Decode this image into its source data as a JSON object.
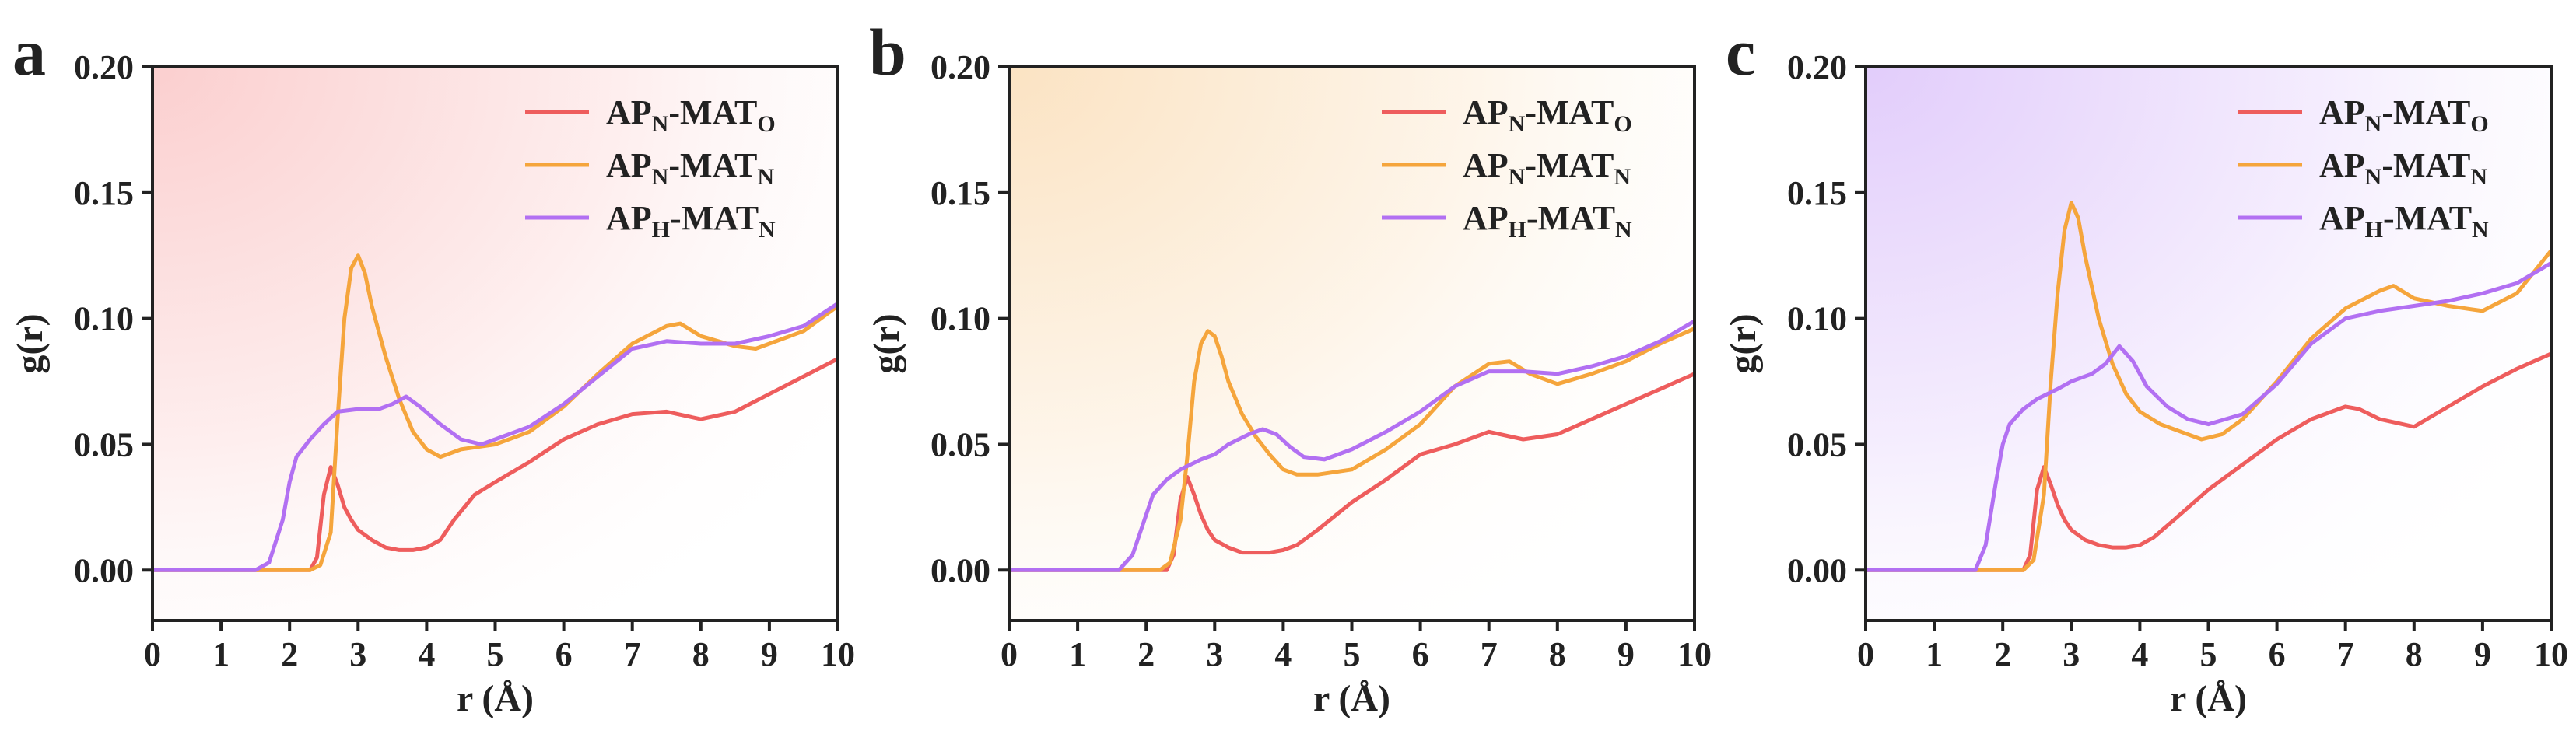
{
  "colors": {
    "ap_n_mat_o": "#ee5d5d",
    "ap_n_mat_n": "#f5a53c",
    "ap_h_mat_n": "#b270f2",
    "panel_a_bg": "#fbcfcf",
    "panel_b_bg": "#fbe3c3",
    "panel_c_bg": "#e2cdfb",
    "axis": "#222222"
  },
  "chart_data": [
    {
      "type": "line",
      "panel_label": "a",
      "xlabel": "r (Å)",
      "ylabel": "g(r)",
      "xlim": [
        0,
        10
      ],
      "ylim": [
        -0.02,
        0.2
      ],
      "xticks": [
        "0",
        "1",
        "2",
        "3",
        "4",
        "5",
        "6",
        "7",
        "8",
        "9",
        "10"
      ],
      "yticks": [
        "0.00",
        "0.05",
        "0.10",
        "0.15",
        "0.20"
      ],
      "legend_position": "top-right",
      "series": [
        {
          "key": "ap_n_mat_o",
          "name": "APN-MATO",
          "label_base1": "AP",
          "label_sub1": "N",
          "label_mid": "-MAT",
          "label_sub2": "O",
          "x": [
            0,
            2.3,
            2.4,
            2.5,
            2.6,
            2.7,
            2.8,
            2.9,
            3.0,
            3.2,
            3.4,
            3.6,
            3.8,
            4.0,
            4.2,
            4.4,
            4.7,
            5.0,
            5.5,
            6.0,
            6.5,
            7.0,
            7.5,
            8.0,
            8.5,
            9.0,
            9.5,
            10.0
          ],
          "y": [
            0,
            0,
            0.005,
            0.03,
            0.041,
            0.034,
            0.025,
            0.02,
            0.016,
            0.012,
            0.009,
            0.008,
            0.008,
            0.009,
            0.012,
            0.02,
            0.03,
            0.035,
            0.043,
            0.052,
            0.058,
            0.062,
            0.063,
            0.06,
            0.063,
            0.07,
            0.077,
            0.084
          ]
        },
        {
          "key": "ap_n_mat_n",
          "name": "APN-MATN",
          "label_base1": "AP",
          "label_sub1": "N",
          "label_mid": "-MAT",
          "label_sub2": "N",
          "x": [
            0,
            2.3,
            2.45,
            2.6,
            2.7,
            2.8,
            2.9,
            3.0,
            3.1,
            3.2,
            3.4,
            3.6,
            3.8,
            4.0,
            4.2,
            4.5,
            5.0,
            5.5,
            6.0,
            6.5,
            7.0,
            7.5,
            7.7,
            8.0,
            8.5,
            8.8,
            9.0,
            9.5,
            10.0
          ],
          "y": [
            0,
            0,
            0.002,
            0.015,
            0.06,
            0.1,
            0.12,
            0.125,
            0.118,
            0.105,
            0.085,
            0.068,
            0.055,
            0.048,
            0.045,
            0.048,
            0.05,
            0.055,
            0.065,
            0.078,
            0.09,
            0.097,
            0.098,
            0.093,
            0.089,
            0.088,
            0.09,
            0.095,
            0.105
          ]
        },
        {
          "key": "ap_h_mat_n",
          "name": "APH-MATN",
          "label_base1": "AP",
          "label_sub1": "H",
          "label_mid": "-MAT",
          "label_sub2": "N",
          "x": [
            0,
            1.5,
            1.7,
            1.9,
            2.0,
            2.1,
            2.3,
            2.5,
            2.7,
            3.0,
            3.3,
            3.5,
            3.7,
            3.9,
            4.2,
            4.5,
            4.8,
            5.0,
            5.5,
            6.0,
            6.5,
            7.0,
            7.5,
            8.0,
            8.5,
            9.0,
            9.5,
            10.0
          ],
          "y": [
            0,
            0,
            0.003,
            0.02,
            0.035,
            0.045,
            0.052,
            0.058,
            0.063,
            0.064,
            0.064,
            0.066,
            0.069,
            0.065,
            0.058,
            0.052,
            0.05,
            0.052,
            0.057,
            0.066,
            0.077,
            0.088,
            0.091,
            0.09,
            0.09,
            0.093,
            0.097,
            0.106
          ]
        }
      ]
    },
    {
      "type": "line",
      "panel_label": "b",
      "xlabel": "r (Å)",
      "ylabel": "g(r)",
      "xlim": [
        0,
        10
      ],
      "ylim": [
        -0.02,
        0.2
      ],
      "xticks": [
        "0",
        "1",
        "2",
        "3",
        "4",
        "5",
        "6",
        "7",
        "8",
        "9",
        "10"
      ],
      "yticks": [
        "0.00",
        "0.05",
        "0.10",
        "0.15",
        "0.20"
      ],
      "legend_position": "top-right",
      "series": [
        {
          "key": "ap_n_mat_o",
          "name": "APN-MATO",
          "label_base1": "AP",
          "label_sub1": "N",
          "label_mid": "-MAT",
          "label_sub2": "O",
          "x": [
            0,
            2.3,
            2.4,
            2.5,
            2.6,
            2.7,
            2.8,
            2.9,
            3.0,
            3.2,
            3.4,
            3.6,
            3.8,
            4.0,
            4.2,
            4.5,
            5.0,
            5.5,
            6.0,
            6.5,
            7.0,
            7.5,
            8.0,
            8.5,
            9.0,
            9.5,
            10.0
          ],
          "y": [
            0,
            0,
            0.006,
            0.028,
            0.037,
            0.03,
            0.022,
            0.016,
            0.012,
            0.009,
            0.007,
            0.007,
            0.007,
            0.008,
            0.01,
            0.016,
            0.027,
            0.036,
            0.046,
            0.05,
            0.055,
            0.052,
            0.054,
            0.06,
            0.066,
            0.072,
            0.078
          ]
        },
        {
          "key": "ap_n_mat_n",
          "name": "APN-MATN",
          "label_base1": "AP",
          "label_sub1": "N",
          "label_mid": "-MAT",
          "label_sub2": "N",
          "x": [
            0,
            2.2,
            2.35,
            2.5,
            2.6,
            2.7,
            2.8,
            2.9,
            3.0,
            3.1,
            3.2,
            3.4,
            3.6,
            3.8,
            4.0,
            4.2,
            4.5,
            5.0,
            5.5,
            6.0,
            6.5,
            7.0,
            7.3,
            7.6,
            8.0,
            8.5,
            9.0,
            9.5,
            10.0
          ],
          "y": [
            0,
            0,
            0.003,
            0.02,
            0.045,
            0.075,
            0.09,
            0.095,
            0.093,
            0.085,
            0.075,
            0.062,
            0.053,
            0.046,
            0.04,
            0.038,
            0.038,
            0.04,
            0.048,
            0.058,
            0.073,
            0.082,
            0.083,
            0.078,
            0.074,
            0.078,
            0.083,
            0.09,
            0.096
          ]
        },
        {
          "key": "ap_h_mat_n",
          "name": "APH-MATN",
          "label_base1": "AP",
          "label_sub1": "H",
          "label_mid": "-MAT",
          "label_sub2": "N",
          "x": [
            0,
            1.6,
            1.8,
            1.9,
            2.0,
            2.1,
            2.3,
            2.5,
            2.8,
            3.0,
            3.2,
            3.5,
            3.7,
            3.9,
            4.1,
            4.3,
            4.6,
            5.0,
            5.5,
            6.0,
            6.5,
            7.0,
            7.5,
            8.0,
            8.5,
            9.0,
            9.5,
            10.0
          ],
          "y": [
            0,
            0,
            0.006,
            0.014,
            0.022,
            0.03,
            0.036,
            0.04,
            0.044,
            0.046,
            0.05,
            0.054,
            0.056,
            0.054,
            0.049,
            0.045,
            0.044,
            0.048,
            0.055,
            0.063,
            0.073,
            0.079,
            0.079,
            0.078,
            0.081,
            0.085,
            0.091,
            0.099
          ]
        }
      ]
    },
    {
      "type": "line",
      "panel_label": "c",
      "xlabel": "r (Å)",
      "ylabel": "g(r)",
      "xlim": [
        0,
        10
      ],
      "ylim": [
        -0.02,
        0.2
      ],
      "xticks": [
        "0",
        "1",
        "2",
        "3",
        "4",
        "5",
        "6",
        "7",
        "8",
        "9",
        "10"
      ],
      "yticks": [
        "0.00",
        "0.05",
        "0.10",
        "0.15",
        "0.20"
      ],
      "legend_position": "top-right",
      "series": [
        {
          "key": "ap_n_mat_o",
          "name": "APN-MATO",
          "label_base1": "AP",
          "label_sub1": "N",
          "label_mid": "-MAT",
          "label_sub2": "O",
          "x": [
            0,
            2.3,
            2.4,
            2.5,
            2.6,
            2.7,
            2.8,
            2.9,
            3.0,
            3.2,
            3.4,
            3.6,
            3.8,
            4.0,
            4.2,
            4.5,
            5.0,
            5.5,
            6.0,
            6.5,
            7.0,
            7.2,
            7.5,
            8.0,
            8.5,
            9.0,
            9.5,
            10.0
          ],
          "y": [
            0,
            0,
            0.006,
            0.032,
            0.041,
            0.034,
            0.026,
            0.02,
            0.016,
            0.012,
            0.01,
            0.009,
            0.009,
            0.01,
            0.013,
            0.02,
            0.032,
            0.042,
            0.052,
            0.06,
            0.065,
            0.064,
            0.06,
            0.057,
            0.065,
            0.073,
            0.08,
            0.086
          ]
        },
        {
          "key": "ap_n_mat_n",
          "name": "APN-MATN",
          "label_base1": "AP",
          "label_sub1": "N",
          "label_mid": "-MAT",
          "label_sub2": "N",
          "x": [
            0,
            2.3,
            2.45,
            2.6,
            2.7,
            2.8,
            2.9,
            3.0,
            3.1,
            3.2,
            3.4,
            3.6,
            3.8,
            4.0,
            4.3,
            4.6,
            4.9,
            5.2,
            5.5,
            6.0,
            6.5,
            7.0,
            7.5,
            7.7,
            8.0,
            8.5,
            9.0,
            9.5,
            10.0
          ],
          "y": [
            0,
            0,
            0.004,
            0.03,
            0.075,
            0.11,
            0.135,
            0.146,
            0.14,
            0.125,
            0.1,
            0.082,
            0.07,
            0.063,
            0.058,
            0.055,
            0.052,
            0.054,
            0.06,
            0.075,
            0.092,
            0.104,
            0.111,
            0.113,
            0.108,
            0.105,
            0.103,
            0.11,
            0.127
          ]
        },
        {
          "key": "ap_h_mat_n",
          "name": "APH-MATN",
          "label_base1": "AP",
          "label_sub1": "H",
          "label_mid": "-MAT",
          "label_sub2": "N",
          "x": [
            0,
            1.6,
            1.75,
            1.9,
            2.0,
            2.1,
            2.3,
            2.5,
            2.8,
            3.0,
            3.3,
            3.5,
            3.7,
            3.9,
            4.1,
            4.4,
            4.7,
            5.0,
            5.5,
            6.0,
            6.5,
            7.0,
            7.5,
            8.0,
            8.5,
            9.0,
            9.5,
            10.0
          ],
          "y": [
            0,
            0,
            0.01,
            0.035,
            0.05,
            0.058,
            0.064,
            0.068,
            0.072,
            0.075,
            0.078,
            0.082,
            0.089,
            0.083,
            0.073,
            0.065,
            0.06,
            0.058,
            0.062,
            0.074,
            0.09,
            0.1,
            0.103,
            0.105,
            0.107,
            0.11,
            0.114,
            0.122
          ]
        }
      ]
    }
  ]
}
